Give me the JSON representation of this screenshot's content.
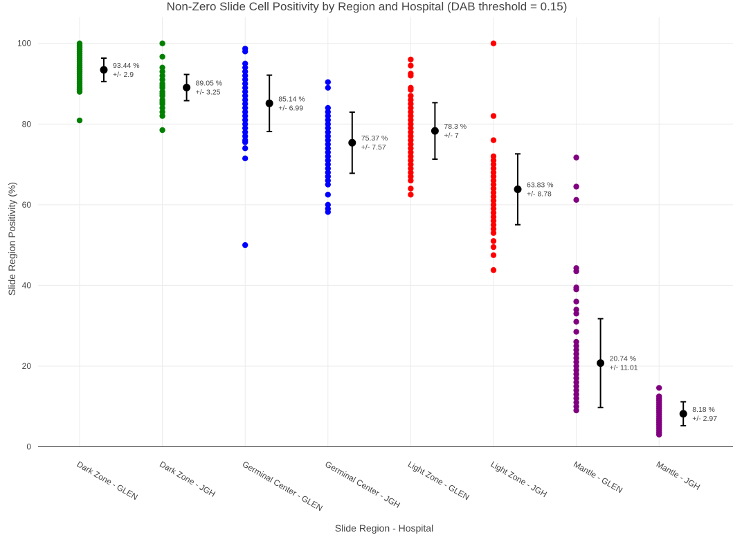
{
  "chart_data": {
    "type": "scatter",
    "title": "Non-Zero Slide Cell Positivity by Region and Hospital (DAB threshold = 0.15)",
    "xlabel": "Slide Region - Hospital",
    "ylabel": "Slide Region Positivity (%)",
    "ylim": [
      -3,
      106
    ],
    "y_ticks": [
      0,
      20,
      40,
      60,
      80,
      100
    ],
    "grid": true,
    "categories": [
      "Dark Zone - GLEN",
      "Dark Zone - JGH",
      "Germinal Center - GLEN",
      "Germinal Center - JGH",
      "Light Zone - GLEN",
      "Light Zone - JGH",
      "Mantle - GLEN",
      "Mantle - JGH"
    ],
    "series": [
      {
        "category": "Dark Zone - GLEN",
        "color": "#008000",
        "points": [
          100,
          99.5,
          99,
          98.5,
          98,
          97.5,
          97,
          96.5,
          96,
          95.5,
          95,
          94.5,
          94,
          93.5,
          93,
          92.5,
          92,
          91.5,
          91,
          90.5,
          90,
          89.5,
          89,
          88.5,
          88,
          80.9
        ],
        "mean": 93.44,
        "sd": 2.9,
        "mean_label": "93.44 %",
        "sd_label": "+/-  2.9"
      },
      {
        "category": "Dark Zone - JGH",
        "color": "#008000",
        "points": [
          100,
          96.7,
          94,
          93,
          92,
          91,
          90,
          89.5,
          89,
          88,
          87.5,
          87,
          86,
          85.5,
          85,
          84,
          83,
          82,
          78.5
        ],
        "mean": 89.05,
        "sd": 3.25,
        "mean_label": "89.05 %",
        "sd_label": "+/-  3.25"
      },
      {
        "category": "Germinal Center - GLEN",
        "color": "#0000ff",
        "points": [
          98.7,
          98,
          95,
          94,
          93,
          92,
          91,
          90,
          89,
          88,
          87,
          86,
          85,
          84,
          83,
          82,
          81,
          80,
          79,
          78,
          77,
          76,
          75.5,
          74,
          71.5,
          50
        ],
        "mean": 85.14,
        "sd": 6.99,
        "mean_label": "85.14 %",
        "sd_label": "+/-  6.99"
      },
      {
        "category": "Germinal Center - JGH",
        "color": "#0000ff",
        "points": [
          90.4,
          89,
          84,
          83,
          82,
          81,
          80,
          79,
          78,
          77,
          76,
          75,
          74,
          73,
          72,
          71,
          70,
          69,
          68,
          67,
          66,
          65,
          62.5,
          60,
          59,
          58.2
        ],
        "mean": 75.37,
        "sd": 7.57,
        "mean_label": "75.37 %",
        "sd_label": "+/-  7.57"
      },
      {
        "category": "Light Zone - GLEN",
        "color": "#ff0000",
        "points": [
          96,
          94.5,
          92.5,
          92,
          89,
          88.5,
          87,
          86,
          85,
          84,
          83,
          82,
          81,
          80,
          79,
          78,
          77,
          76,
          75,
          74,
          73,
          72,
          71,
          70,
          69,
          68,
          67,
          66,
          64,
          62.5
        ],
        "mean": 78.3,
        "sd": 7,
        "mean_label": "78.3 %",
        "sd_label": "+/-  7"
      },
      {
        "category": "Light Zone - JGH",
        "color": "#ff0000",
        "points": [
          100,
          82,
          76,
          72,
          71,
          70,
          69,
          68,
          67,
          66,
          65,
          64,
          63,
          62,
          61,
          60,
          59,
          58,
          57,
          56,
          55,
          54,
          53,
          51,
          49.5,
          47.5,
          43.8
        ],
        "mean": 63.83,
        "sd": 8.78,
        "mean_label": "63.83 %",
        "sd_label": "+/-  8.78"
      },
      {
        "category": "Mantle - GLEN",
        "color": "#800080",
        "points": [
          71.7,
          64.5,
          61.2,
          44.3,
          43.5,
          39.5,
          39,
          36,
          34,
          33,
          31,
          28.5,
          26,
          25,
          24,
          23,
          22,
          21,
          20,
          19,
          18,
          17,
          16,
          15,
          14,
          13,
          12,
          11,
          10,
          9
        ],
        "mean": 20.74,
        "sd": 11.01,
        "mean_label": "20.74 %",
        "sd_label": "+/-  11.01"
      },
      {
        "category": "Mantle - JGH",
        "color": "#800080",
        "points": [
          14.6,
          12.5,
          12,
          11.5,
          11,
          10.5,
          10,
          9.5,
          9,
          8.5,
          8,
          7.5,
          7,
          6.5,
          6,
          5.5,
          5,
          4.5,
          4,
          3.5,
          3
        ],
        "mean": 8.18,
        "sd": 2.97,
        "mean_label": "8.18 %",
        "sd_label": "+/-  2.97"
      }
    ],
    "summary_marker_color": "#000000",
    "gridline_color": "#ebebeb",
    "zeroline_color": "#444444"
  }
}
